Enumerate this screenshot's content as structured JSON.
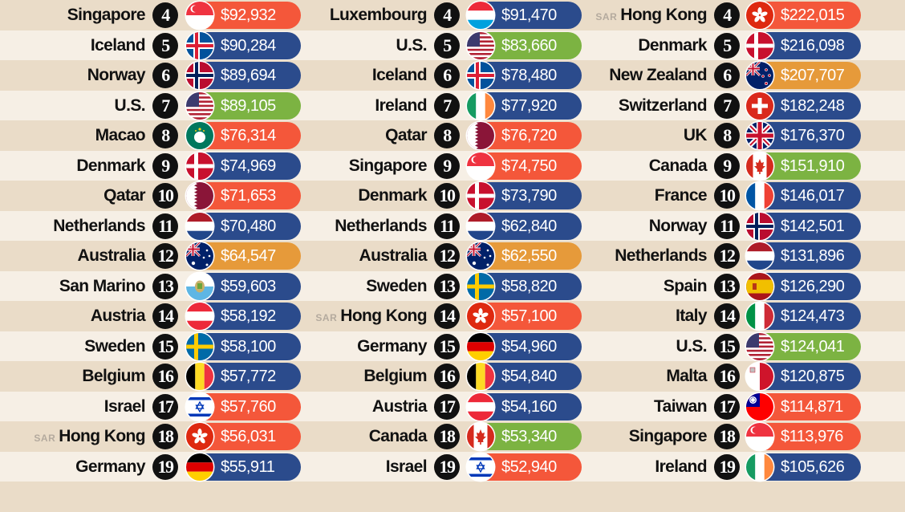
{
  "colors": {
    "Asia": "#f4573a",
    "Europe": "#2b4b8c",
    "North America": "#7cb342",
    "Oceania": "#e69a3a",
    "Middle East": "#f4573a"
  },
  "chart_data": {
    "type": "table",
    "columns": [
      {
        "rows": [
          {
            "rank": "4",
            "country": "Singapore",
            "value": "$92,932",
            "region": "Asia",
            "flag": "singapore-flag-icon"
          },
          {
            "rank": "5",
            "country": "Iceland",
            "value": "$90,284",
            "region": "Europe",
            "flag": "iceland-flag-icon"
          },
          {
            "rank": "6",
            "country": "Norway",
            "value": "$89,694",
            "region": "Europe",
            "flag": "norway-flag-icon"
          },
          {
            "rank": "7",
            "country": "U.S.",
            "value": "$89,105",
            "region": "North America",
            "flag": "usa-flag-icon"
          },
          {
            "rank": "8",
            "country": "Macao",
            "value": "$76,314",
            "region": "Asia",
            "flag": "macao-flag-icon"
          },
          {
            "rank": "9",
            "country": "Denmark",
            "value": "$74,969",
            "region": "Europe",
            "flag": "denmark-flag-icon"
          },
          {
            "rank": "10",
            "country": "Qatar",
            "value": "$71,653",
            "region": "Middle East",
            "flag": "qatar-flag-icon"
          },
          {
            "rank": "11",
            "country": "Netherlands",
            "value": "$70,480",
            "region": "Europe",
            "flag": "netherlands-flag-icon"
          },
          {
            "rank": "12",
            "country": "Australia",
            "value": "$64,547",
            "region": "Oceania",
            "flag": "australia-flag-icon"
          },
          {
            "rank": "13",
            "country": "San Marino",
            "value": "$59,603",
            "region": "Europe",
            "flag": "san-marino-flag-icon"
          },
          {
            "rank": "14",
            "country": "Austria",
            "value": "$58,192",
            "region": "Europe",
            "flag": "austria-flag-icon"
          },
          {
            "rank": "15",
            "country": "Sweden",
            "value": "$58,100",
            "region": "Europe",
            "flag": "sweden-flag-icon"
          },
          {
            "rank": "16",
            "country": "Belgium",
            "value": "$57,772",
            "region": "Europe",
            "flag": "belgium-flag-icon"
          },
          {
            "rank": "17",
            "country": "Israel",
            "value": "$57,760",
            "region": "Middle East",
            "flag": "israel-flag-icon"
          },
          {
            "rank": "18",
            "country": "Hong Kong",
            "prefix": "SAR",
            "value": "$56,031",
            "region": "Asia",
            "flag": "hong-kong-flag-icon"
          },
          {
            "rank": "19",
            "country": "Germany",
            "value": "$55,911",
            "region": "Europe",
            "flag": "germany-flag-icon"
          }
        ]
      },
      {
        "rows": [
          {
            "rank": "4",
            "country": "Luxembourg",
            "value": "$91,470",
            "region": "Europe",
            "flag": "luxembourg-flag-icon"
          },
          {
            "rank": "5",
            "country": "U.S.",
            "value": "$83,660",
            "region": "North America",
            "flag": "usa-flag-icon"
          },
          {
            "rank": "6",
            "country": "Iceland",
            "value": "$78,480",
            "region": "Europe",
            "flag": "iceland-flag-icon"
          },
          {
            "rank": "7",
            "country": "Ireland",
            "value": "$77,920",
            "region": "Europe",
            "flag": "ireland-flag-icon"
          },
          {
            "rank": "8",
            "country": "Qatar",
            "value": "$76,720",
            "region": "Middle East",
            "flag": "qatar-flag-icon"
          },
          {
            "rank": "9",
            "country": "Singapore",
            "value": "$74,750",
            "region": "Asia",
            "flag": "singapore-flag-icon"
          },
          {
            "rank": "10",
            "country": "Denmark",
            "value": "$73,790",
            "region": "Europe",
            "flag": "denmark-flag-icon"
          },
          {
            "rank": "11",
            "country": "Netherlands",
            "value": "$62,840",
            "region": "Europe",
            "flag": "netherlands-flag-icon"
          },
          {
            "rank": "12",
            "country": "Australia",
            "value": "$62,550",
            "region": "Oceania",
            "flag": "australia-flag-icon"
          },
          {
            "rank": "13",
            "country": "Sweden",
            "value": "$58,820",
            "region": "Europe",
            "flag": "sweden-flag-icon"
          },
          {
            "rank": "14",
            "country": "Hong Kong",
            "prefix": "SAR",
            "value": "$57,100",
            "region": "Asia",
            "flag": "hong-kong-flag-icon"
          },
          {
            "rank": "15",
            "country": "Germany",
            "value": "$54,960",
            "region": "Europe",
            "flag": "germany-flag-icon"
          },
          {
            "rank": "16",
            "country": "Belgium",
            "value": "$54,840",
            "region": "Europe",
            "flag": "belgium-flag-icon"
          },
          {
            "rank": "17",
            "country": "Austria",
            "value": "$54,160",
            "region": "Europe",
            "flag": "austria-flag-icon"
          },
          {
            "rank": "18",
            "country": "Canada",
            "value": "$53,340",
            "region": "North America",
            "flag": "canada-flag-icon"
          },
          {
            "rank": "19",
            "country": "Israel",
            "value": "$52,940",
            "region": "Middle East",
            "flag": "israel-flag-icon"
          }
        ]
      },
      {
        "rows": [
          {
            "rank": "4",
            "country": "Hong Kong",
            "prefix": "SAR",
            "value": "$222,015",
            "region": "Asia",
            "flag": "hong-kong-flag-icon"
          },
          {
            "rank": "5",
            "country": "Denmark",
            "value": "$216,098",
            "region": "Europe",
            "flag": "denmark-flag-icon"
          },
          {
            "rank": "6",
            "country": "New Zealand",
            "value": "$207,707",
            "region": "Oceania",
            "flag": "new-zealand-flag-icon"
          },
          {
            "rank": "7",
            "country": "Switzerland",
            "value": "$182,248",
            "region": "Europe",
            "flag": "switzerland-flag-icon"
          },
          {
            "rank": "8",
            "country": "UK",
            "value": "$176,370",
            "region": "Europe",
            "flag": "uk-flag-icon"
          },
          {
            "rank": "9",
            "country": "Canada",
            "value": "$151,910",
            "region": "North America",
            "flag": "canada-flag-icon"
          },
          {
            "rank": "10",
            "country": "France",
            "value": "$146,017",
            "region": "Europe",
            "flag": "france-flag-icon"
          },
          {
            "rank": "11",
            "country": "Norway",
            "value": "$142,501",
            "region": "Europe",
            "flag": "norway-flag-icon"
          },
          {
            "rank": "12",
            "country": "Netherlands",
            "value": "$131,896",
            "region": "Europe",
            "flag": "netherlands-flag-icon"
          },
          {
            "rank": "13",
            "country": "Spain",
            "value": "$126,290",
            "region": "Europe",
            "flag": "spain-flag-icon"
          },
          {
            "rank": "14",
            "country": "Italy",
            "value": "$124,473",
            "region": "Europe",
            "flag": "italy-flag-icon"
          },
          {
            "rank": "15",
            "country": "U.S.",
            "value": "$124,041",
            "region": "North America",
            "flag": "usa-flag-icon"
          },
          {
            "rank": "16",
            "country": "Malta",
            "value": "$120,875",
            "region": "Europe",
            "flag": "malta-flag-icon"
          },
          {
            "rank": "17",
            "country": "Taiwan",
            "value": "$114,871",
            "region": "Asia",
            "flag": "taiwan-flag-icon"
          },
          {
            "rank": "18",
            "country": "Singapore",
            "value": "$113,976",
            "region": "Asia",
            "flag": "singapore-flag-icon"
          },
          {
            "rank": "19",
            "country": "Ireland",
            "value": "$105,626",
            "region": "Europe",
            "flag": "ireland-flag-icon"
          }
        ]
      }
    ]
  }
}
